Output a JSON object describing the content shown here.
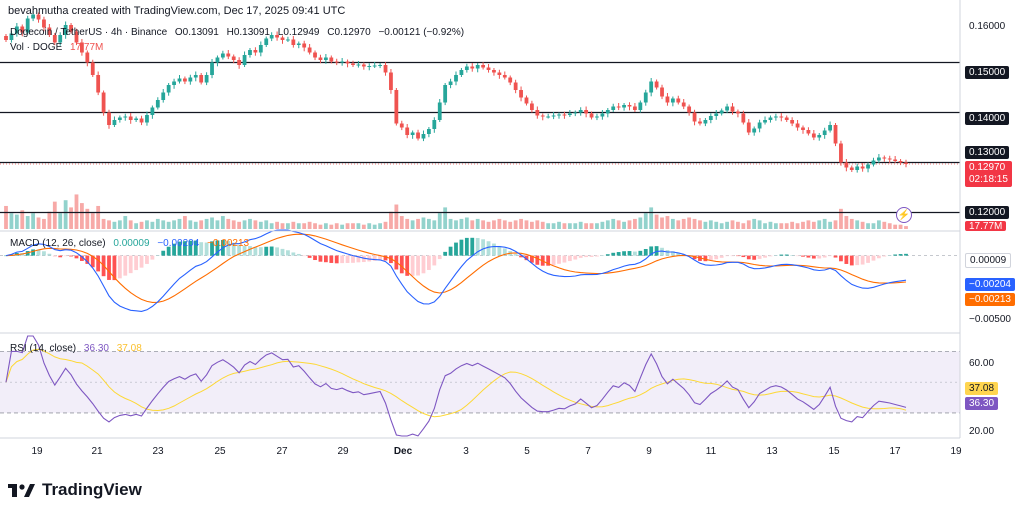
{
  "header": {
    "attribution": "bevahmutha created with TradingView.com, Dec 17, 2025 09:41 UTC"
  },
  "legend": {
    "symbol": "Dogecoin / TetherUS · 4h · Binance",
    "open": "O0.13091",
    "high": "H0.13091",
    "low": "L0.12949",
    "close": "C0.12970",
    "change": "−0.00121 (−0.92%)",
    "vol_label": "Vol · DOGE",
    "vol_value": "17.77M",
    "macd_label": "MACD (12, 26, close)",
    "macd_hist": "0.00009",
    "macd_line": "−0.00204",
    "macd_signal": "−0.00213",
    "rsi_label": "RSI (14, close)",
    "rsi_value": "36.30",
    "rsi_ma": "37.08"
  },
  "price_axis": {
    "labels": [
      "0.16000",
      "0.15000",
      "0.14000",
      "0.13000",
      "0.12000"
    ],
    "current_price": "0.12970",
    "countdown": "02:18:15",
    "vol_tag": "17.77M"
  },
  "macd_axis": {
    "hist": "0.00009",
    "macd": "−0.00204",
    "signal": "−0.00213",
    "tick": "−0.00500"
  },
  "rsi_axis": {
    "ticks": [
      "60.00",
      "20.00"
    ],
    "rsi_ma": "37.08",
    "rsi": "36.30"
  },
  "time_axis": [
    "19",
    "21",
    "23",
    "25",
    "27",
    "29",
    "Dec",
    "3",
    "5",
    "7",
    "9",
    "11",
    "13",
    "15",
    "17",
    "19"
  ],
  "brand": "TradingView",
  "colors": {
    "up": "#26a69a",
    "down": "#ef5350",
    "macd": "#2962ff",
    "signal": "#ff6d00",
    "rsi": "#7e57c2",
    "rsi_ma": "#fdd835"
  },
  "chart_data": {
    "type": "candlestick",
    "symbol": "DOGE/USDT",
    "interval": "4h",
    "price_ylim": [
      0.1165,
      0.1625
    ],
    "horizontal_levels": [
      0.15,
      0.14,
      0.13,
      0.12
    ],
    "close_series": [
      0.1545,
      0.1558,
      0.1572,
      0.156,
      0.1588,
      0.1596,
      0.1586,
      0.157,
      0.1555,
      0.154,
      0.1555,
      0.1575,
      0.1562,
      0.154,
      0.152,
      0.15,
      0.1475,
      0.144,
      0.14,
      0.1375,
      0.1385,
      0.139,
      0.1392,
      0.1385,
      0.1388,
      0.138,
      0.1395,
      0.141,
      0.1425,
      0.144,
      0.1455,
      0.1462,
      0.1468,
      0.1462,
      0.147,
      0.1475,
      0.146,
      0.1475,
      0.15,
      0.151,
      0.1518,
      0.1512,
      0.1505,
      0.1495,
      0.1515,
      0.1525,
      0.152,
      0.1535,
      0.1548,
      0.1555,
      0.155,
      0.1545,
      0.1546,
      0.1535,
      0.1538,
      0.153,
      0.152,
      0.151,
      0.1505,
      0.151,
      0.1502,
      0.15,
      0.1502,
      0.1498,
      0.1495,
      0.1496,
      0.1492,
      0.1493,
      0.1494,
      0.1495,
      0.148,
      0.1445,
      0.1378,
      0.137,
      0.1355,
      0.136,
      0.1348,
      0.1357,
      0.1367,
      0.1385,
      0.142,
      0.1455,
      0.1462,
      0.1475,
      0.1485,
      0.1492,
      0.1488,
      0.1495,
      0.149,
      0.1485,
      0.148,
      0.1475,
      0.147,
      0.146,
      0.1445,
      0.143,
      0.1418,
      0.1405,
      0.1394,
      0.1392,
      0.1392,
      0.1394,
      0.1396,
      0.1395,
      0.1398,
      0.14,
      0.1405,
      0.1398,
      0.139,
      0.1392,
      0.1398,
      0.1405,
      0.1412,
      0.141,
      0.1415,
      0.1412,
      0.1405,
      0.142,
      0.144,
      0.1462,
      0.145,
      0.1432,
      0.142,
      0.1428,
      0.142,
      0.1412,
      0.14,
      0.1382,
      0.1378,
      0.1385,
      0.1393,
      0.1398,
      0.1404,
      0.1412,
      0.1402,
      0.1398,
      0.138,
      0.136,
      0.1368,
      0.138,
      0.1385,
      0.139,
      0.1392,
      0.139,
      0.1385,
      0.1378,
      0.137,
      0.1365,
      0.1358,
      0.135,
      0.1355,
      0.1364,
      0.1375,
      0.1338,
      0.13,
      0.129,
      0.1285,
      0.1292,
      0.1288,
      0.1296,
      0.1304,
      0.131,
      0.1308,
      0.1306,
      0.1303,
      0.13,
      0.1297
    ],
    "volume_profile": [
      0.8,
      0.55,
      0.5,
      0.65,
      0.45,
      0.55,
      0.4,
      0.35,
      0.6,
      0.95,
      0.55,
      1.0,
      0.75,
      1.2,
      0.9,
      0.7,
      0.55,
      0.8,
      0.35,
      0.3,
      0.25,
      0.3,
      0.45,
      0.3,
      0.2,
      0.25,
      0.3,
      0.25,
      0.35,
      0.3,
      0.25,
      0.3,
      0.35,
      0.45,
      0.3,
      0.25,
      0.3,
      0.35,
      0.4,
      0.3,
      0.45,
      0.35,
      0.3,
      0.25,
      0.3,
      0.35,
      0.3,
      0.25,
      0.3,
      0.2,
      0.25,
      0.2,
      0.2,
      0.25,
      0.2,
      0.2,
      0.25,
      0.2,
      0.15,
      0.2,
      0.15,
      0.2,
      0.15,
      0.2,
      0.2,
      0.2,
      0.15,
      0.2,
      0.15,
      0.2,
      0.25,
      0.6,
      0.85,
      0.45,
      0.35,
      0.3,
      0.35,
      0.4,
      0.35,
      0.3,
      0.55,
      0.75,
      0.35,
      0.3,
      0.35,
      0.4,
      0.3,
      0.35,
      0.3,
      0.25,
      0.3,
      0.35,
      0.3,
      0.25,
      0.3,
      0.35,
      0.3,
      0.25,
      0.3,
      0.25,
      0.2,
      0.2,
      0.25,
      0.2,
      0.2,
      0.2,
      0.25,
      0.2,
      0.2,
      0.2,
      0.25,
      0.3,
      0.35,
      0.3,
      0.25,
      0.3,
      0.35,
      0.4,
      0.55,
      0.75,
      0.5,
      0.4,
      0.45,
      0.35,
      0.3,
      0.35,
      0.4,
      0.35,
      0.3,
      0.25,
      0.3,
      0.25,
      0.2,
      0.25,
      0.3,
      0.25,
      0.2,
      0.3,
      0.35,
      0.3,
      0.2,
      0.25,
      0.2,
      0.2,
      0.2,
      0.25,
      0.2,
      0.25,
      0.3,
      0.25,
      0.3,
      0.35,
      0.25,
      0.3,
      0.7,
      0.45,
      0.35,
      0.3,
      0.25,
      0.2,
      0.2,
      0.3,
      0.25,
      0.2,
      0.15,
      0.15,
      0.1,
      0.1
    ],
    "macd": {
      "ylim": [
        -0.0062,
        0.0018
      ],
      "note": "MACD(12,26) computed from close_series; last printed values macd -0.00204, signal -0.00213, histogram 0.00009"
    },
    "rsi": {
      "ylim": [
        15,
        80
      ],
      "bands": [
        70,
        30
      ],
      "ticks": [
        60,
        20
      ]
    }
  }
}
